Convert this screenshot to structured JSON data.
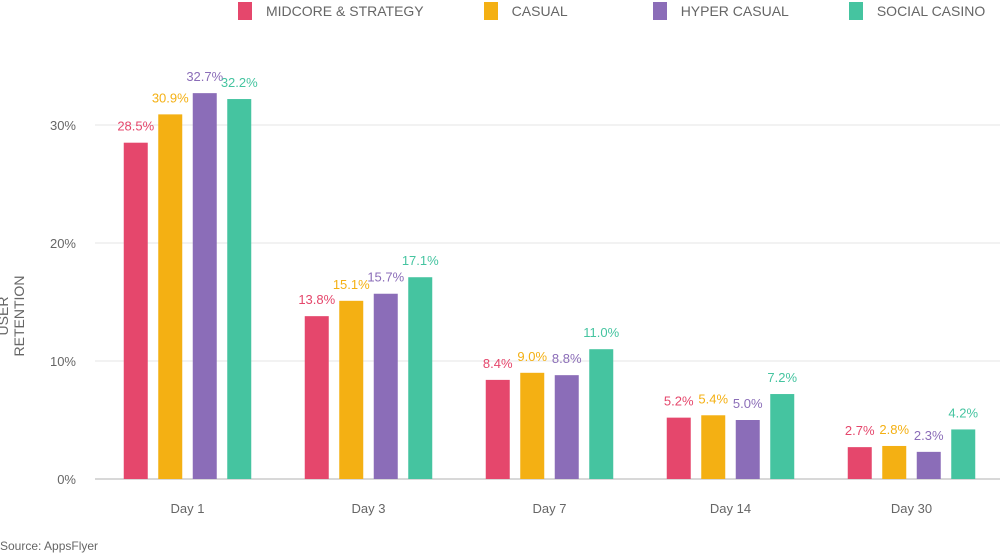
{
  "chart_data": {
    "type": "bar",
    "categories": [
      "Day 1",
      "Day 3",
      "Day 7",
      "Day 14",
      "Day 30"
    ],
    "series": [
      {
        "name": "MIDCORE & STRATEGY",
        "color": "#e5476c",
        "values": [
          28.5,
          13.8,
          8.4,
          5.2,
          2.7
        ]
      },
      {
        "name": "CASUAL",
        "color": "#f4b013",
        "values": [
          30.9,
          15.1,
          9.0,
          5.4,
          2.8
        ]
      },
      {
        "name": "HYPER CASUAL",
        "color": "#8b6db8",
        "values": [
          32.7,
          15.7,
          8.8,
          5.0,
          2.3
        ]
      },
      {
        "name": "SOCIAL CASINO",
        "color": "#45c4a0",
        "values": [
          32.2,
          17.1,
          11.0,
          7.2,
          4.2
        ]
      }
    ],
    "xlabel": "",
    "ylabel": "USER RETENTION",
    "yticks": [
      "0%",
      "10%",
      "20%",
      "30%"
    ],
    "ylim": [
      0,
      30
    ],
    "grid": true,
    "legend_position": "top-right",
    "value_suffix": "%"
  },
  "source": "Source: AppsFlyer"
}
